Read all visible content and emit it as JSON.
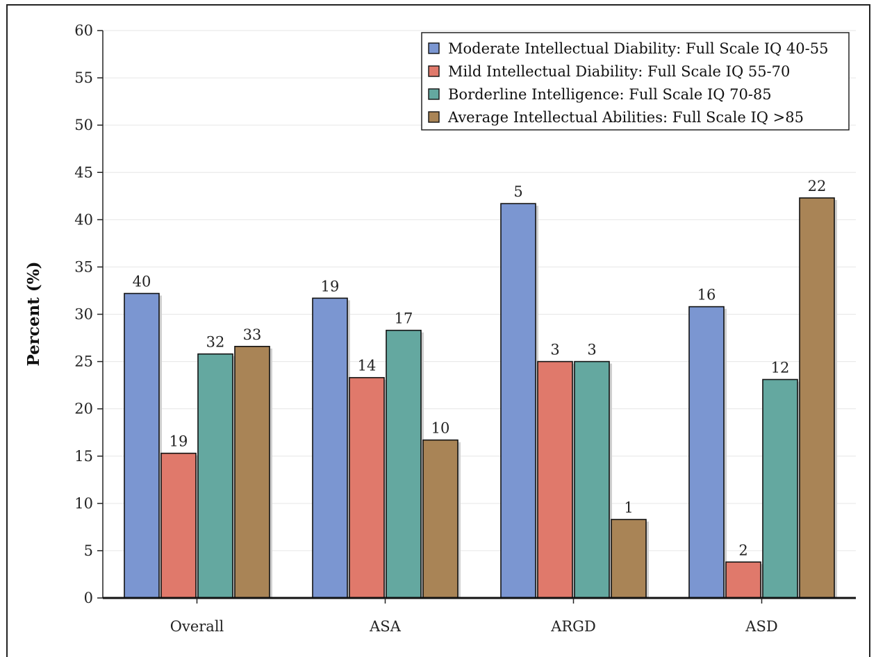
{
  "chart_data": {
    "type": "bar",
    "title": "",
    "xlabel": "",
    "ylabel": "Percent (%)",
    "ylim": [
      0,
      60
    ],
    "yticks": [
      0,
      5,
      10,
      15,
      20,
      25,
      30,
      35,
      40,
      45,
      50,
      55,
      60
    ],
    "grid": true,
    "legend_position": "top-right",
    "categories": [
      "Overall",
      "ASA",
      "ARGD",
      "ASD"
    ],
    "series": [
      {
        "name": "Moderate Intellectual Diability: Full Scale IQ 40-55",
        "color": "#7b96d1",
        "values": [
          32.2,
          31.7,
          41.7,
          30.8
        ],
        "labels": [
          "40",
          "19",
          "5",
          "16"
        ]
      },
      {
        "name": "Mild Intellectual Diability: Full Scale IQ 55-70",
        "color": "#e0796b",
        "values": [
          15.3,
          23.3,
          25.0,
          3.8
        ],
        "labels": [
          "19",
          "14",
          "3",
          "2"
        ]
      },
      {
        "name": "Borderline Intelligence: Full Scale IQ 70-85",
        "color": "#64a8a0",
        "values": [
          25.8,
          28.3,
          25.0,
          23.1
        ],
        "labels": [
          "32",
          "17",
          "3",
          "12"
        ]
      },
      {
        "name": "Average Intellectual Abilities: Full Scale IQ >85",
        "color": "#a98456",
        "values": [
          26.6,
          16.7,
          8.3,
          42.3
        ],
        "labels": [
          "33",
          "10",
          "1",
          "22"
        ]
      }
    ]
  }
}
